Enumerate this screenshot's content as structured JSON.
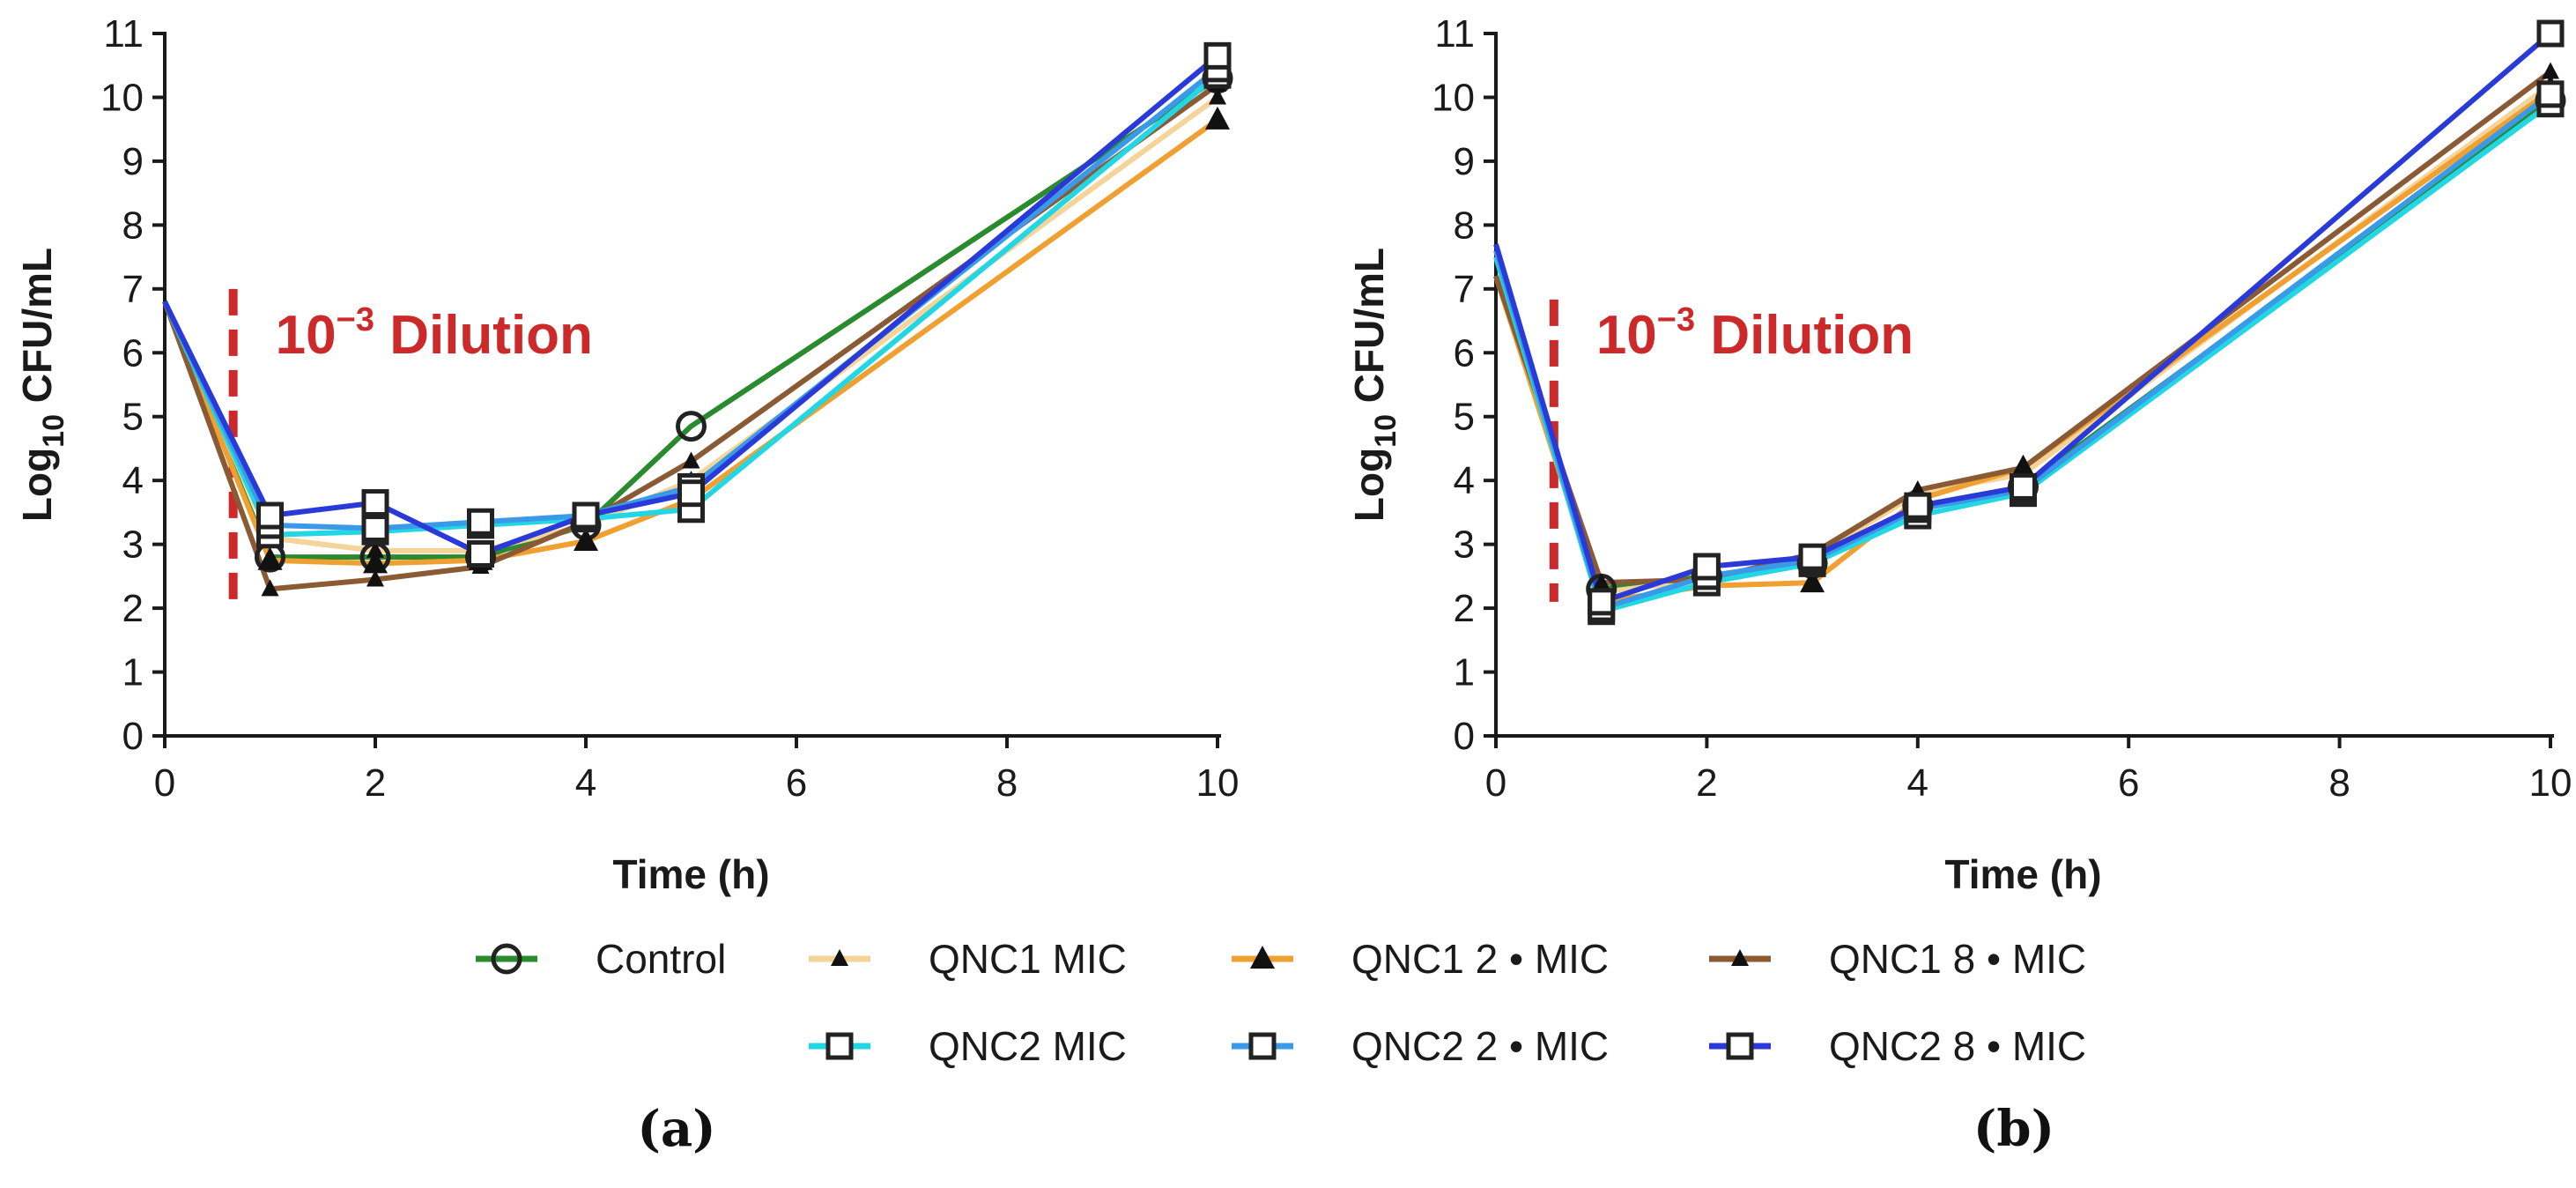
{
  "colors": {
    "background": "#ffffff",
    "axis": "#1a1a1a",
    "dilution": "#cc2a2a",
    "Control": "#2a8a2e",
    "QNC1 MIC": "#f5d49a",
    "QNC1 2 • MIC": "#f0a030",
    "QNC1 8 • MIC": "#8a5a34",
    "QNC2 MIC": "#22d6e4",
    "QNC2 2 • MIC": "#3a9ae8",
    "QNC2 8 • MIC": "#2a3ad8"
  },
  "legend": [
    {
      "name": "Control",
      "label": "Control",
      "marker": "circle"
    },
    {
      "name": "QNC1 MIC",
      "label": "QNC1 MIC",
      "marker": "small-triangle"
    },
    {
      "name": "QNC1 2 • MIC",
      "label": "QNC1 2 • MIC",
      "marker": "triangle"
    },
    {
      "name": "QNC1 8 • MIC",
      "label": "QNC1 8 • MIC",
      "marker": "small-triangle"
    },
    {
      "name": "QNC2 MIC",
      "label": "QNC2 MIC",
      "marker": "square"
    },
    {
      "name": "QNC2 2 • MIC",
      "label": "QNC2 2 • MIC",
      "marker": "square"
    },
    {
      "name": "QNC2 8 • MIC",
      "label": "QNC2 8 • MIC",
      "marker": "square"
    }
  ],
  "chart_data": [
    {
      "panel_label": "(a)",
      "type": "line",
      "xlabel": "Time (h)",
      "ylabel_main": "Log",
      "ylabel_sub": "10",
      "ylabel_rest": " CFU/mL",
      "xlim": [
        0,
        10
      ],
      "ylim": [
        0,
        11
      ],
      "xticks": [
        "0",
        "2",
        "4",
        "6",
        "8",
        "10"
      ],
      "yticks": [
        "0",
        "1",
        "2",
        "3",
        "4",
        "5",
        "6",
        "7",
        "8",
        "9",
        "10",
        "11"
      ],
      "annotation": {
        "base": "10",
        "exponent": "−3",
        "text": " Dilution",
        "at_time": 0.65
      },
      "x": [
        0,
        1,
        2,
        3,
        4,
        5,
        10
      ],
      "series": [
        {
          "name": "Control",
          "values": [
            6.8,
            2.8,
            2.8,
            2.8,
            3.3,
            4.85,
            10.3
          ]
        },
        {
          "name": "QNC1 MIC",
          "values": [
            6.8,
            3.1,
            2.9,
            2.9,
            3.3,
            4.0,
            10.0
          ]
        },
        {
          "name": "QNC1 2 • MIC",
          "values": [
            6.8,
            2.75,
            2.7,
            2.75,
            3.05,
            3.7,
            9.65
          ]
        },
        {
          "name": "QNC1 8 • MIC",
          "values": [
            6.8,
            2.3,
            2.45,
            2.65,
            3.35,
            4.3,
            10.2
          ]
        },
        {
          "name": "QNC2 MIC",
          "values": [
            6.8,
            3.15,
            3.2,
            3.3,
            3.4,
            3.55,
            10.35
          ]
        },
        {
          "name": "QNC2 2 • MIC",
          "values": [
            6.8,
            3.3,
            3.25,
            3.35,
            3.45,
            3.9,
            10.45
          ]
        },
        {
          "name": "QNC2 8 • MIC",
          "values": [
            6.8,
            3.45,
            3.65,
            2.85,
            3.45,
            3.8,
            10.65
          ]
        }
      ]
    },
    {
      "panel_label": "(b)",
      "type": "line",
      "xlabel": "Time (h)",
      "ylabel_main": "Log",
      "ylabel_sub": "10",
      "ylabel_rest": " CFU/mL",
      "xlim": [
        0,
        10
      ],
      "ylim": [
        0,
        11
      ],
      "xticks": [
        "0",
        "2",
        "4",
        "6",
        "8",
        "10"
      ],
      "yticks": [
        "0",
        "1",
        "2",
        "3",
        "4",
        "5",
        "6",
        "7",
        "8",
        "9",
        "10",
        "11"
      ],
      "annotation": {
        "base": "10",
        "exponent": "−3",
        "text": " Dilution",
        "at_time": 0.55
      },
      "x": [
        0,
        1,
        2,
        3,
        4,
        5,
        10
      ],
      "series": [
        {
          "name": "Control",
          "values": [
            7.2,
            2.3,
            2.5,
            2.7,
            3.6,
            3.9,
            9.95
          ]
        },
        {
          "name": "QNC1 MIC",
          "values": [
            7.2,
            2.25,
            2.45,
            2.8,
            3.8,
            4.1,
            10.2
          ]
        },
        {
          "name": "QNC1 2 • MIC",
          "values": [
            7.2,
            2.1,
            2.35,
            2.4,
            3.7,
            4.2,
            10.1
          ]
        },
        {
          "name": "QNC1 8 • MIC",
          "values": [
            7.2,
            2.4,
            2.45,
            2.85,
            3.85,
            4.2,
            10.4
          ]
        },
        {
          "name": "QNC2 MIC",
          "values": [
            7.5,
            1.95,
            2.4,
            2.7,
            3.45,
            3.8,
            9.9
          ]
        },
        {
          "name": "QNC2 2 • MIC",
          "values": [
            7.6,
            2.0,
            2.5,
            2.75,
            3.55,
            3.85,
            10.05
          ]
        },
        {
          "name": "QNC2 8 • MIC",
          "values": [
            7.7,
            2.1,
            2.65,
            2.8,
            3.6,
            3.9,
            11.0
          ]
        }
      ]
    }
  ]
}
